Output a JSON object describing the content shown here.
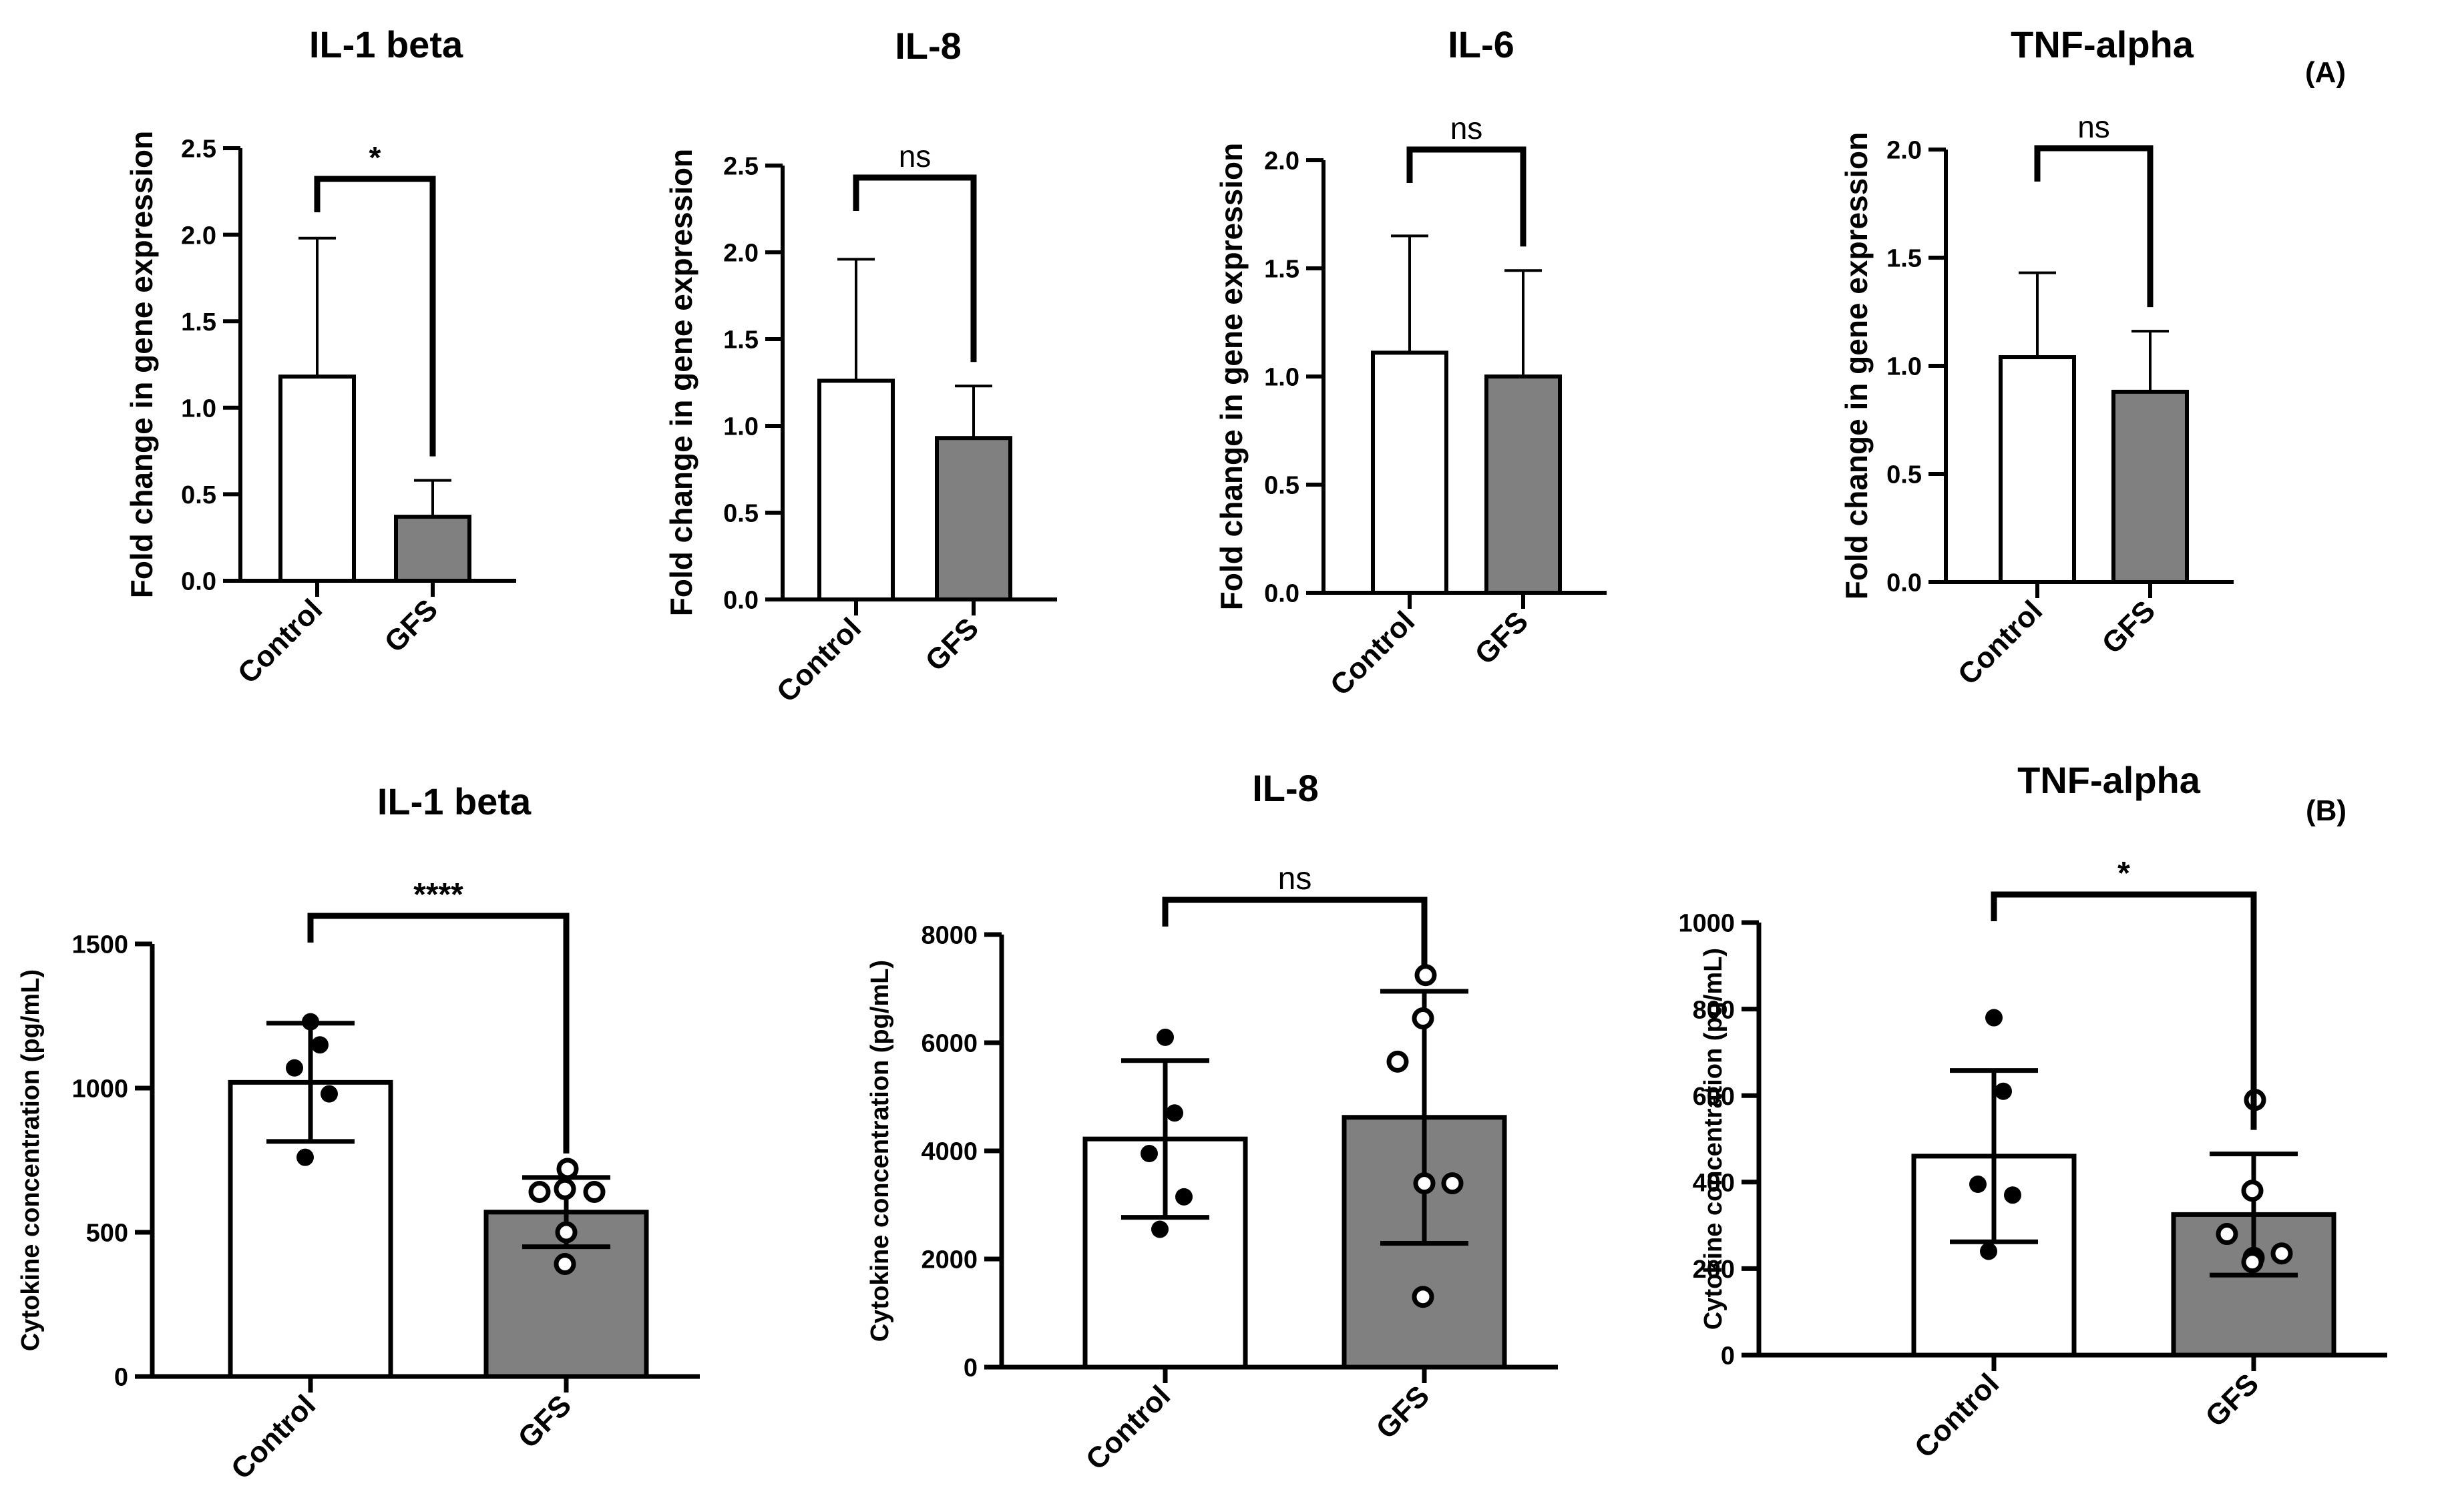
{
  "panel_labels": {
    "a": "(A)",
    "b": "(B)"
  },
  "colors": {
    "control": "#ffffff",
    "gfs": "#808080",
    "ink": "#000000"
  },
  "chart_data": [
    {
      "type": "bar",
      "title": "IL-1 beta",
      "ylabel": "Fold change in gene expression",
      "categories": [
        "Control",
        "GFS"
      ],
      "values": [
        1.18,
        0.37
      ],
      "errors": [
        0.8,
        0.21
      ],
      "ylim": [
        0,
        2.5
      ],
      "yticks": [
        "0.0",
        "0.5",
        "1.0",
        "1.5",
        "2.0",
        "2.5"
      ],
      "significance": "*"
    },
    {
      "type": "bar",
      "title": "IL-8",
      "ylabel": "Fold change in gene expression",
      "categories": [
        "Control",
        "GFS"
      ],
      "values": [
        1.26,
        0.93
      ],
      "errors": [
        0.7,
        0.3
      ],
      "ylim": [
        0,
        2.5
      ],
      "yticks": [
        "0.0",
        "0.5",
        "1.0",
        "1.5",
        "2.0",
        "2.5"
      ],
      "significance": "ns"
    },
    {
      "type": "bar",
      "title": "IL-6",
      "ylabel": "Fold change in gene expression",
      "categories": [
        "Control",
        "GFS"
      ],
      "values": [
        1.11,
        1.0
      ],
      "errors": [
        0.54,
        0.49
      ],
      "ylim": [
        0,
        2.0
      ],
      "yticks": [
        "0.0",
        "0.5",
        "1.0",
        "1.5",
        "2.0"
      ],
      "significance": "ns"
    },
    {
      "type": "bar",
      "title": "TNF-alpha",
      "ylabel": "Fold change in gene expression",
      "categories": [
        "Control",
        "GFS"
      ],
      "values": [
        1.04,
        0.88
      ],
      "errors": [
        0.39,
        0.28
      ],
      "ylim": [
        0,
        2.0
      ],
      "yticks": [
        "0.0",
        "0.5",
        "1.0",
        "1.5",
        "2.0"
      ],
      "significance": "ns"
    },
    {
      "type": "bar",
      "title": "IL-1 beta",
      "ylabel": "Cytokine concentration (pg/mL)",
      "categories": [
        "Control",
        "GFS"
      ],
      "values": [
        1020,
        570
      ],
      "errors": [
        205,
        120
      ],
      "points": [
        [
          1230,
          1150,
          1070,
          980,
          760
        ],
        [
          720,
          650,
          640,
          640,
          500,
          390
        ]
      ],
      "ylim": [
        0,
        1500
      ],
      "yticks": [
        "0",
        "500",
        "1000",
        "1500"
      ],
      "significance": "****"
    },
    {
      "type": "bar",
      "title": "IL-8",
      "ylabel": "Cytokine concentration (pg/mL)",
      "categories": [
        "Control",
        "GFS"
      ],
      "values": [
        4220,
        4620
      ],
      "errors": [
        1450,
        2330
      ],
      "points": [
        [
          6100,
          4700,
          3950,
          3150,
          2550
        ],
        [
          7250,
          6450,
          5650,
          3400,
          3400,
          1300
        ]
      ],
      "ylim": [
        0,
        8000
      ],
      "yticks": [
        "0",
        "2000",
        "4000",
        "6000",
        "8000"
      ],
      "significance": "ns"
    },
    {
      "type": "bar",
      "title": "TNF-alpha",
      "ylabel": "Cytokine concentration (pg/mL)",
      "categories": [
        "Control",
        "GFS"
      ],
      "values": [
        460,
        325
      ],
      "errors": [
        198,
        140
      ],
      "points": [
        [
          780,
          610,
          395,
          370,
          240
        ],
        [
          590,
          380,
          280,
          235,
          225,
          215
        ]
      ],
      "ylim": [
        0,
        1000
      ],
      "yticks": [
        "0",
        "200",
        "400",
        "600",
        "800",
        "1000"
      ],
      "significance": "*"
    }
  ]
}
